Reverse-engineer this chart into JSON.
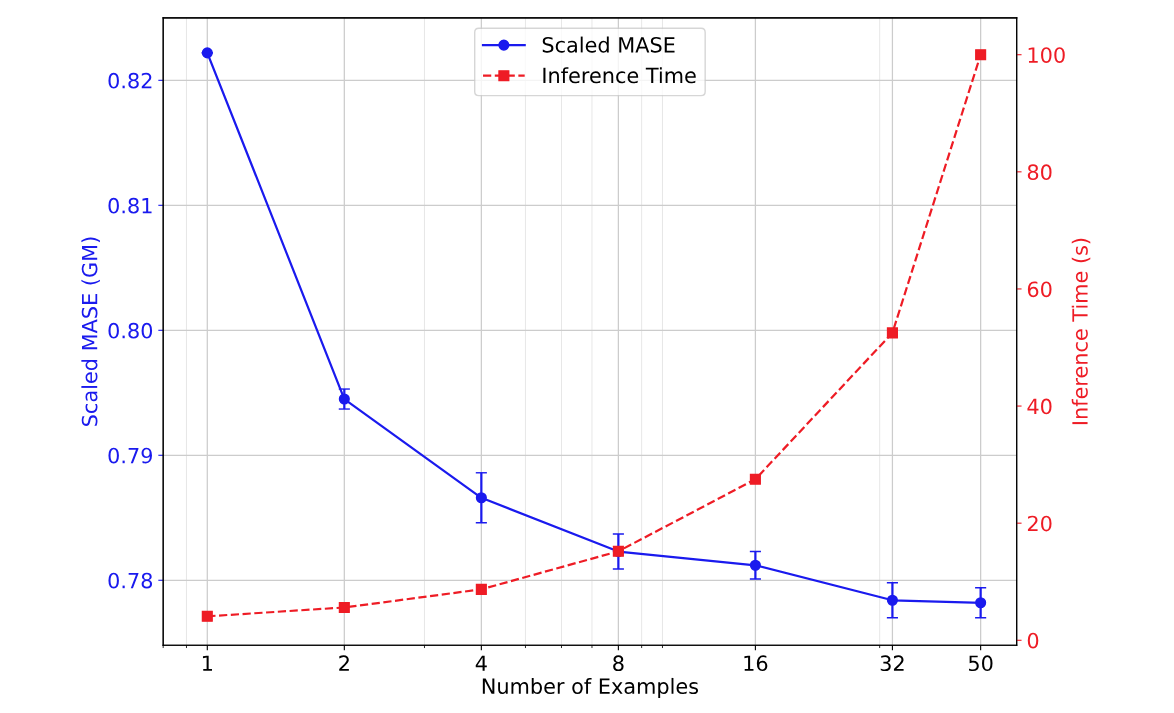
{
  "chart_data": {
    "type": "line",
    "xlabel": "Number of Examples",
    "ylabel": "Scaled MASE (GM)",
    "y2label": "Inference Time (s)",
    "x": [
      1,
      2,
      4,
      8,
      16,
      32,
      50
    ],
    "series": [
      {
        "name": "Scaled MASE",
        "color": "#1a1aee",
        "values": [
          0.8222,
          0.7945,
          0.7866,
          0.7823,
          0.7812,
          0.7784,
          0.7782
        ],
        "errors": [
          null,
          0.0008,
          0.002,
          0.0014,
          0.0011,
          0.0014,
          0.0012
        ],
        "marker": "circle",
        "line_style": "solid"
      },
      {
        "name": "Inference Time",
        "color": "#ee1c25",
        "axis": "y2",
        "values": [
          4.1,
          5.6,
          8.7,
          15.2,
          27.5,
          52.5,
          100
        ],
        "marker": "square",
        "line_style": "dashed"
      }
    ],
    "log": "x",
    "xlim": [
      0.8,
      60
    ],
    "xticks": [
      1,
      2,
      4,
      8,
      16,
      32,
      50
    ],
    "ylim": [
      0.7748,
      0.825
    ],
    "yticks": [
      0.78,
      0.79,
      {
        "value": 0.8,
        "label": "0.80"
      },
      0.81,
      0.82
    ],
    "y2lim": [
      -0.85,
      106.3
    ],
    "y2ticks": [
      0,
      20,
      40,
      60,
      80,
      100
    ],
    "grid": true,
    "legend": "top center"
  }
}
